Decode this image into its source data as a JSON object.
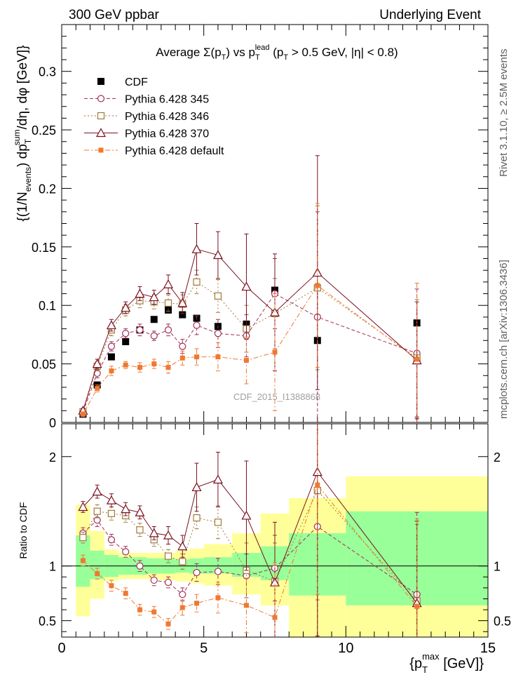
{
  "header": {
    "left": "300 GeV ppbar",
    "right": "Underlying Event"
  },
  "side_labels": {
    "rivet": "Rivet 3.1.10, ≥ 2.5M events",
    "mcplots": "mcplots.cern.ch [arXiv:1306.3436]"
  },
  "chart_data": [
    {
      "type": "line",
      "title": "Average Σ(p_T) vs p_T^lead (p_T > 0.5 GeV, |η| < 0.8)",
      "title_parts": {
        "a": "Average",
        "sigma": "Σ(p",
        "sub_t": "T",
        "close": ")",
        "vs": "vs p",
        "sub_t2": "T",
        "sup_lead": "lead",
        "cond_open": "(p",
        "sub_t3": "T",
        "cond_rest": "> 0.5 GeV, |η| < 0.8)"
      },
      "ylabel": "(1/N_events) dp_T^sum/dη, dφ [GeV]",
      "ylabel_parts": {
        "a": "(1/N",
        "sub_events": "events",
        "b": ") dp",
        "sup_sum": "sum",
        "sub_t": "T",
        "c": "/dη, dφ [GeV]"
      },
      "xlim": [
        0,
        15
      ],
      "ylim": [
        0,
        0.34
      ],
      "yticks": [
        0,
        0.05,
        0.1,
        0.15,
        0.2,
        0.25,
        0.3
      ],
      "ytick_labels": [
        "0",
        "0.05",
        "0.1",
        "0.15",
        "0.2",
        "0.25",
        "0.3"
      ],
      "watermark": "CDF_2015_I1388868",
      "legend_position": "top-left",
      "x": [
        0.75,
        1.25,
        1.75,
        2.25,
        2.75,
        3.25,
        3.75,
        4.25,
        4.75,
        5.5,
        6.5,
        7.5,
        9.0,
        12.5
      ],
      "series": [
        {
          "name": "CDF",
          "color": "#000000",
          "marker": "filled-square",
          "line": "none",
          "values": [
            0.007,
            0.032,
            0.056,
            0.069,
            0.079,
            0.088,
            0.096,
            0.092,
            0.089,
            0.082,
            0.084,
            0.113,
            0.07,
            0.085
          ]
        },
        {
          "name": "Pythia 6.428 345",
          "color": "#a0305a",
          "marker": "open-circle",
          "line": "dashed",
          "values": [
            0.009,
            0.042,
            0.065,
            0.076,
            0.079,
            0.074,
            0.079,
            0.065,
            0.083,
            0.076,
            0.074,
            0.11,
            0.09,
            0.059
          ],
          "errors": [
            0.002,
            0.004,
            0.004,
            0.004,
            0.005,
            0.004,
            0.005,
            0.006,
            0.008,
            0.012,
            0.018,
            0.03,
            0.09,
            0.055
          ]
        },
        {
          "name": "Pythia 6.428 346",
          "color": "#a07a3a",
          "marker": "open-square",
          "line": "dotted",
          "values": [
            0.009,
            0.048,
            0.079,
            0.096,
            0.104,
            0.103,
            0.102,
            0.101,
            0.12,
            0.108,
            0.08,
            0.093,
            0.115,
            0.055
          ],
          "errors": [
            0.002,
            0.004,
            0.005,
            0.005,
            0.006,
            0.006,
            0.007,
            0.008,
            0.01,
            0.014,
            0.02,
            0.03,
            0.07,
            0.05
          ]
        },
        {
          "name": "Pythia 6.428 370",
          "color": "#7a1020",
          "marker": "open-triangle",
          "line": "solid",
          "values": [
            0.01,
            0.05,
            0.083,
            0.098,
            0.11,
            0.107,
            0.118,
            0.102,
            0.148,
            0.143,
            0.116,
            0.094,
            0.128,
            0.053
          ],
          "errors": [
            0.002,
            0.004,
            0.005,
            0.005,
            0.006,
            0.006,
            0.008,
            0.009,
            0.022,
            0.02,
            0.045,
            0.05,
            0.1,
            0.05
          ]
        },
        {
          "name": "Pythia 6.428 default",
          "color": "#f07830",
          "marker": "filled-small-square",
          "line": "dashdot",
          "values": [
            0.007,
            0.029,
            0.044,
            0.049,
            0.047,
            0.05,
            0.047,
            0.055,
            0.056,
            0.056,
            0.053,
            0.06,
            0.117,
            0.054
          ],
          "errors": [
            0.002,
            0.003,
            0.004,
            0.003,
            0.004,
            0.004,
            0.005,
            0.006,
            0.007,
            0.012,
            0.02,
            0.05,
            0.07,
            0.065
          ]
        }
      ]
    },
    {
      "type": "line",
      "ylabel": "Ratio to CDF",
      "xlabel": "{p_T^max [GeV]}",
      "xlabel_parts": {
        "open": "{p",
        "sub_t": "T",
        "sup_max": "max",
        "rest": "[GeV]}"
      },
      "xlim": [
        0,
        15
      ],
      "ylim": [
        0.35,
        2.3
      ],
      "xticks": [
        0,
        5,
        10,
        15
      ],
      "xtick_labels": [
        "0",
        "5",
        "10",
        "15"
      ],
      "yticks": [
        0.5,
        1,
        2
      ],
      "ytick_labels": [
        "0.5",
        "1",
        "2"
      ],
      "bin_edges": [
        0.5,
        1.0,
        1.5,
        2.0,
        2.5,
        3.0,
        3.5,
        4.0,
        4.5,
        5.0,
        6.0,
        7.0,
        8.0,
        10.0,
        15.0
      ],
      "band_stat_lo": [
        0.81,
        0.88,
        0.9,
        0.92,
        0.92,
        0.93,
        0.93,
        0.94,
        0.93,
        0.93,
        0.9,
        0.87,
        0.73,
        0.64
      ],
      "band_stat_hi": [
        1.28,
        1.14,
        1.1,
        1.08,
        1.08,
        1.07,
        1.07,
        1.06,
        1.07,
        1.08,
        1.12,
        1.18,
        1.3,
        1.5
      ],
      "band_total_lo": [
        0.54,
        0.7,
        0.86,
        0.88,
        0.88,
        0.88,
        0.87,
        0.86,
        0.84,
        0.82,
        0.74,
        0.64,
        0.35,
        0.35
      ],
      "band_total_hi": [
        1.56,
        1.32,
        1.15,
        1.12,
        1.12,
        1.12,
        1.12,
        1.14,
        1.16,
        1.2,
        1.3,
        1.48,
        1.62,
        1.82
      ],
      "x": [
        0.75,
        1.25,
        1.75,
        2.25,
        2.75,
        3.25,
        3.75,
        4.25,
        4.75,
        5.5,
        6.5,
        7.5,
        9.0,
        12.5
      ],
      "series": [
        {
          "name": "Pythia 6.428 345",
          "color": "#a0305a",
          "marker": "open-circle",
          "line": "dashed",
          "values": [
            1.3,
            1.42,
            1.24,
            1.13,
            1.0,
            0.87,
            0.85,
            0.74,
            0.94,
            0.95,
            0.91,
            0.98,
            1.36,
            0.74
          ],
          "errors": [
            0.05,
            0.06,
            0.05,
            0.05,
            0.05,
            0.05,
            0.05,
            0.06,
            0.08,
            0.12,
            0.2,
            0.3,
            1.2,
            0.75
          ]
        },
        {
          "name": "Pythia 6.428 346",
          "color": "#a07a3a",
          "marker": "open-square",
          "line": "dotted",
          "values": [
            1.26,
            1.5,
            1.48,
            1.46,
            1.33,
            1.24,
            1.09,
            1.04,
            1.44,
            1.4,
            0.96,
            0.86,
            1.69,
            0.68
          ],
          "errors": [
            0.05,
            0.06,
            0.06,
            0.06,
            0.06,
            0.06,
            0.06,
            0.07,
            0.1,
            0.15,
            0.25,
            0.35,
            1.0,
            0.7
          ]
        },
        {
          "name": "Pythia 6.428 370",
          "color": "#7a1020",
          "marker": "open-triangle",
          "line": "solid",
          "values": [
            1.54,
            1.68,
            1.6,
            1.52,
            1.49,
            1.3,
            1.28,
            1.18,
            1.72,
            1.79,
            1.46,
            0.85,
            1.86,
            0.66
          ],
          "errors": [
            0.05,
            0.06,
            0.06,
            0.06,
            0.06,
            0.06,
            0.08,
            0.1,
            0.22,
            0.25,
            0.5,
            0.55,
            1.5,
            0.75
          ]
        },
        {
          "name": "Pythia 6.428 default",
          "color": "#f07830",
          "marker": "filled-small-square",
          "line": "dashdot",
          "values": [
            1.05,
            0.93,
            0.82,
            0.75,
            0.6,
            0.58,
            0.47,
            0.62,
            0.66,
            0.71,
            0.64,
            0.53,
            1.74,
            0.63
          ],
          "errors": [
            0.05,
            0.05,
            0.05,
            0.05,
            0.05,
            0.05,
            0.05,
            0.07,
            0.08,
            0.14,
            0.25,
            0.5,
            1.0,
            0.8
          ]
        }
      ]
    }
  ]
}
